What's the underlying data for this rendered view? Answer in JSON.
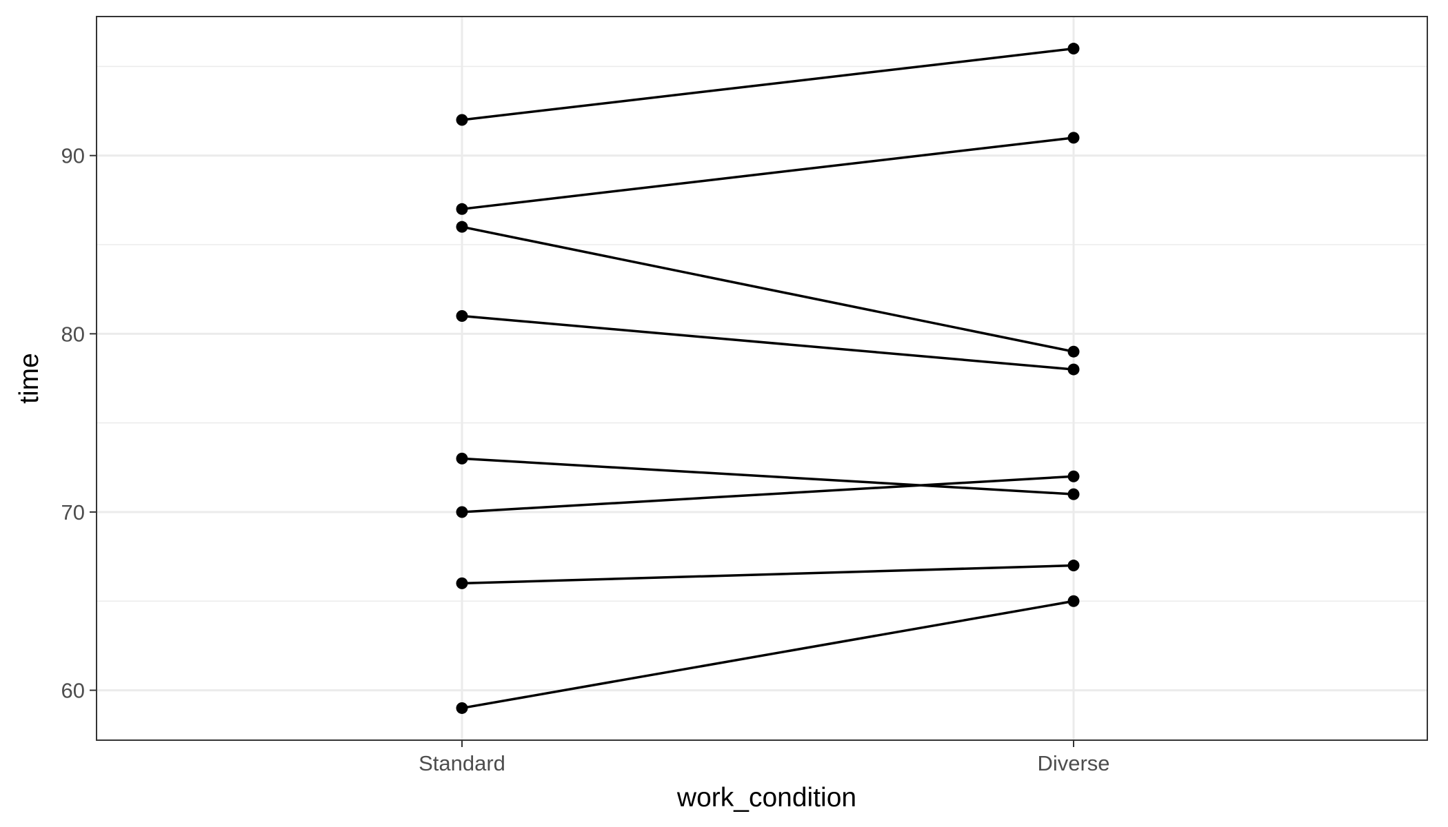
{
  "chart_data": {
    "type": "line",
    "xlabel": "work_condition",
    "ylabel": "time",
    "categories": [
      "Standard",
      "Diverse"
    ],
    "ylim": [
      57.2,
      97.8
    ],
    "y_ticks": [
      60,
      70,
      80,
      90
    ],
    "y_minor_ticks": [
      65,
      75,
      85,
      95
    ],
    "grid": true,
    "series": [
      {
        "values": [
          92,
          96
        ]
      },
      {
        "values": [
          87,
          91
        ]
      },
      {
        "values": [
          86,
          79
        ]
      },
      {
        "values": [
          81,
          78
        ]
      },
      {
        "values": [
          73,
          71
        ]
      },
      {
        "values": [
          70,
          72
        ]
      },
      {
        "values": [
          66,
          67
        ]
      },
      {
        "values": [
          59,
          65
        ]
      }
    ],
    "colors": {
      "line": "#000000",
      "point": "#000000",
      "grid": "#ebebeb",
      "panel_border": "#333333"
    }
  }
}
